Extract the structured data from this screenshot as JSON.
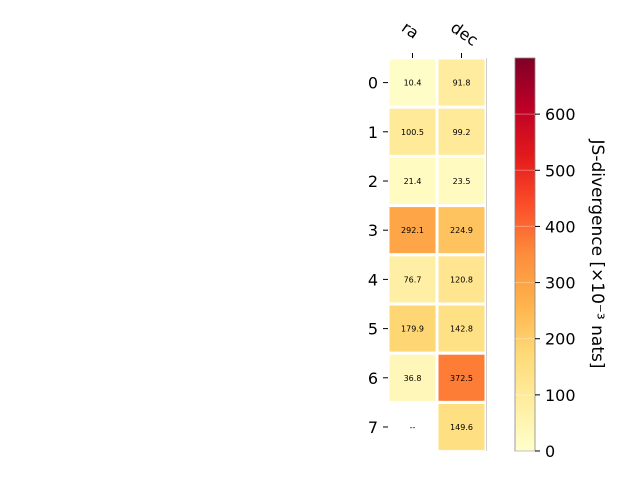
{
  "chart_data": {
    "type": "heatmap",
    "columns": [
      "ra",
      "dec"
    ],
    "rows": [
      "0",
      "1",
      "2",
      "3",
      "4",
      "5",
      "6",
      "7"
    ],
    "values": [
      [
        10.4,
        91.8
      ],
      [
        100.5,
        99.2
      ],
      [
        21.4,
        23.5
      ],
      [
        292.1,
        224.9
      ],
      [
        76.7,
        120.8
      ],
      [
        179.9,
        142.8
      ],
      [
        36.8,
        372.5
      ],
      [
        null,
        149.6
      ]
    ],
    "labels": [
      [
        "10.4",
        "91.8"
      ],
      [
        "100.5",
        "99.2"
      ],
      [
        "21.4",
        "23.5"
      ],
      [
        "292.1",
        "224.9"
      ],
      [
        "76.7",
        "120.8"
      ],
      [
        "179.9",
        "142.8"
      ],
      [
        "36.8",
        "372.5"
      ],
      [
        "--",
        "149.6"
      ]
    ],
    "colorbar": {
      "label": "JS-divergence [×10⁻³ nats]",
      "range": [
        0,
        700
      ],
      "ticks": [
        "0",
        "100",
        "200",
        "300",
        "400",
        "500",
        "600"
      ],
      "colormap": "YlOrRd"
    }
  }
}
